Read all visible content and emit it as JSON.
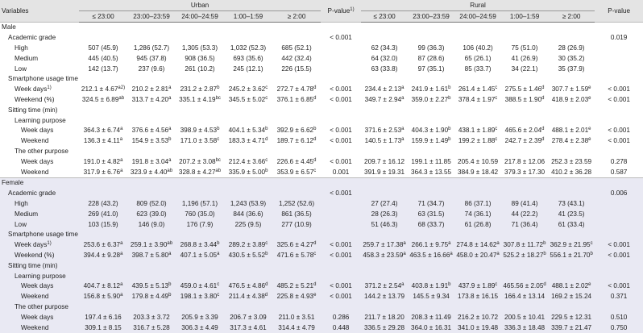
{
  "header": {
    "variables": "Variables",
    "urban": "Urban",
    "p_urban": [
      "P-value",
      "1)"
    ],
    "rural": "Rural",
    "p_rural": "P-value",
    "times": [
      "≤ 23:00",
      "23:00–23:59",
      "24:00–24:59",
      "1:00–1:59",
      "≥ 2:00"
    ]
  },
  "sections": [
    {
      "name": "Male",
      "rows": [
        {
          "label": "Academic grade",
          "p_urban": "< 0.001",
          "p_rural": "0.019"
        },
        {
          "label": "High",
          "urban": [
            "507 (45.9)",
            "1,286 (52.7)",
            "1,305 (53.3)",
            "1,032 (52.3)",
            "685 (52.1)"
          ],
          "rural": [
            "62 (34.3)",
            "99 (36.3)",
            "106 (40.2)",
            "75 (51.0)",
            "28 (26.9)"
          ]
        },
        {
          "label": "Medium",
          "urban": [
            "445 (40.5)",
            "945 (37.8)",
            "908 (36.5)",
            "693 (35.6)",
            "442 (32.4)"
          ],
          "rural": [
            "64 (32.0)",
            "87 (28.6)",
            "65 (26.1)",
            "41 (26.9)",
            "30 (35.2)"
          ]
        },
        {
          "label": "Low",
          "urban": [
            "142 (13.7)",
            "237 (9.6)",
            "261 (10.2)",
            "245 (12.1)",
            "226 (15.5)"
          ],
          "rural": [
            "63 (33.8)",
            "97 (35.1)",
            "85 (33.7)",
            "34 (22.1)",
            "35 (37.9)"
          ]
        },
        {
          "label": "Smartphone usage time (min)"
        },
        {
          "label": [
            "Week days",
            "1)"
          ],
          "urban": [
            [
              "212.1 ± 4.67",
              "a2)"
            ],
            [
              "210.2 ± 2.81",
              "a"
            ],
            [
              "231.2 ± 2.87",
              "b"
            ],
            [
              "245.2 ± 3.62",
              "c"
            ],
            [
              "272.7 ± 4.78",
              "d"
            ]
          ],
          "p_urban": "< 0.001",
          "rural": [
            [
              "234.4 ± 2.13",
              "a"
            ],
            [
              "241.9 ± 1.61",
              "b"
            ],
            [
              "261.4 ± 1.45",
              "c"
            ],
            [
              "275.5 ± 1.46",
              "d"
            ],
            [
              "307.7 ± 1.59",
              "e"
            ]
          ],
          "p_rural": "< 0.001"
        },
        {
          "label": "Weekend (%)",
          "urban": [
            [
              "324.5 ± 6.89",
              "ab"
            ],
            [
              "313.7 ± 4.20",
              "a"
            ],
            [
              "335.1 ± 4.19",
              "bc"
            ],
            [
              "345.5 ± 5.02",
              "c"
            ],
            [
              "376.1 ± 6.85",
              "d"
            ]
          ],
          "p_urban": "< 0.001",
          "rural": [
            [
              "349.7 ± 2.94",
              "a"
            ],
            [
              "359.0 ± 2.27",
              "b"
            ],
            [
              "378.4 ± 1.97",
              "c"
            ],
            [
              "388.5 ± 1.90",
              "d"
            ],
            [
              "418.9 ± 2.03",
              "e"
            ]
          ],
          "p_rural": "< 0.001"
        },
        {
          "label": "Sitting time (min)"
        },
        {
          "label": "Learning purpose"
        },
        {
          "label": "Week days",
          "urban": [
            [
              "364.3 ± 6.74",
              "a"
            ],
            [
              "376.6 ± 4.56",
              "a"
            ],
            [
              "398.9 ± 4.53",
              "b"
            ],
            [
              "404.1 ± 5.34",
              "b"
            ],
            [
              "392.9 ± 6.62",
              "b"
            ]
          ],
          "p_urban": "< 0.001",
          "rural": [
            [
              "371.6 ± 2.53",
              "a"
            ],
            [
              "404.3 ± 1.90",
              "b"
            ],
            [
              "438.1 ± 1.89",
              "c"
            ],
            [
              "465.6 ± 2.04",
              "d"
            ],
            [
              "488.1 ± 2.01",
              "e"
            ]
          ],
          "p_rural": "< 0.001"
        },
        {
          "label": "Weekend",
          "urban": [
            [
              "136.3 ± 4.11",
              "a"
            ],
            [
              "154.9 ± 3.53",
              "b"
            ],
            [
              "171.0 ± 3.58",
              "c"
            ],
            [
              "183.3 ± 4.71",
              "d"
            ],
            [
              "189.7 ± 6.12",
              "d"
            ]
          ],
          "p_urban": "< 0.001",
          "rural": [
            [
              "140.5 ± 1.73",
              "a"
            ],
            [
              "159.9 ± 1.49",
              "b"
            ],
            [
              "199.2 ± 1.88",
              "c"
            ],
            [
              "242.7 ± 2.39",
              "d"
            ],
            [
              "278.4 ± 2.38",
              "e"
            ]
          ],
          "p_rural": "< 0.001"
        },
        {
          "label": "The other purpose"
        },
        {
          "label": "Week days",
          "urban": [
            [
              "191.0 ± 4.82",
              "a"
            ],
            [
              "191.8 ± 3.04",
              "a"
            ],
            [
              "207.2 ± 3.08",
              "bc"
            ],
            [
              "212.4 ± 3.66",
              "c"
            ],
            [
              "226.6 ± 4.45",
              "d"
            ]
          ],
          "p_urban": "< 0.001",
          "rural": [
            "209.7 ± 16.12",
            "199.1 ± 11.85",
            "205.4 ± 10.59",
            "217.8 ± 12.06",
            "252.3 ± 23.59"
          ],
          "p_rural": "0.278"
        },
        {
          "label": "Weekend",
          "urban": [
            [
              "317.9 ± 6.76",
              "a"
            ],
            [
              "323.9 ± 4.40",
              "ab"
            ],
            [
              "328.8 ± 4.27",
              "ab"
            ],
            [
              "335.9 ± 5.00",
              "b"
            ],
            [
              "353.9 ± 6.57",
              "c"
            ]
          ],
          "p_urban": "0.001",
          "rural": [
            "391.9 ± 19.31",
            "364.3 ± 13.55",
            "384.9 ± 18.42",
            "379.3 ± 17.30",
            "410.2 ± 36.28"
          ],
          "p_rural": "0.587"
        }
      ]
    },
    {
      "name": "Female",
      "rows": [
        {
          "label": "Academic grade",
          "p_urban": "< 0.001",
          "p_rural": "0.006"
        },
        {
          "label": "High",
          "urban": [
            "228 (43.2)",
            "809 (52.0)",
            "1,196 (57.1)",
            "1,243 (53.9)",
            "1,252 (52.6)"
          ],
          "rural": [
            "27 (27.4)",
            "71 (34.7)",
            "86 (37.1)",
            "89 (41.4)",
            "73 (43.1)"
          ]
        },
        {
          "label": "Medium",
          "urban": [
            "269 (41.0)",
            "623 (39.0)",
            "760 (35.0)",
            "844 (36.6)",
            "861 (36.5)"
          ],
          "rural": [
            "28 (26.3)",
            "63 (31.5)",
            "74 (36.1)",
            "44 (22.2)",
            "41 (23.5)"
          ]
        },
        {
          "label": "Low",
          "urban": [
            "103 (15.9)",
            "146 (9.0)",
            "176 (7.9)",
            "225 (9.5)",
            "277 (10.9)"
          ],
          "rural": [
            "51 (46.3)",
            "68 (33.7)",
            "61 (26.8)",
            "71 (36.4)",
            "61 (33.4)"
          ]
        },
        {
          "label": "Smartphone usage time (min)"
        },
        {
          "label": [
            "Week days",
            "1)"
          ],
          "urban": [
            [
              "253.6 ± 6.37",
              "a"
            ],
            [
              "259.1 ± 3.90",
              "ab"
            ],
            [
              "268.8 ± 3.44",
              "b"
            ],
            [
              "289.2 ± 3.89",
              "c"
            ],
            [
              "325.6 ± 4.27",
              "d"
            ]
          ],
          "p_urban": "< 0.001",
          "rural": [
            [
              "259.7 ± 17.38",
              "a"
            ],
            [
              "266.1 ± 9.75",
              "a"
            ],
            [
              "274.8 ± 14.62",
              "a"
            ],
            [
              "307.8 ± 11.72",
              "b"
            ],
            [
              "362.9 ± 21.95",
              "c"
            ]
          ],
          "p_rural": "< 0.001"
        },
        {
          "label": "Weekend (%)",
          "urban": [
            [
              "394.4 ± 9.28",
              "a"
            ],
            [
              "398.7 ± 5.80",
              "a"
            ],
            [
              "407.1 ± 5.05",
              "a"
            ],
            [
              "430.5 ± 5.52",
              "b"
            ],
            [
              "471.6 ± 5.78",
              "c"
            ]
          ],
          "p_urban": "< 0.001",
          "rural": [
            [
              "458.3 ± 23.59",
              "a"
            ],
            [
              "463.5 ± 16.66",
              "a"
            ],
            [
              "458.0 ± 20.47",
              "a"
            ],
            [
              "525.2 ± 18.27",
              "b"
            ],
            [
              "556.1 ± 21.70",
              "b"
            ]
          ],
          "p_rural": "< 0.001"
        },
        {
          "label": "Sitting time (min)"
        },
        {
          "label": "Learning purpose"
        },
        {
          "label": "Week days",
          "urban": [
            [
              "404.7 ± 8.12",
              "a"
            ],
            [
              "439.5 ± 5.13",
              "b"
            ],
            [
              "459.0 ± 4.61",
              "c"
            ],
            [
              "476.5 ± 4.86",
              "d"
            ],
            [
              "485.2 ± 5.21",
              "d"
            ]
          ],
          "p_urban": "< 0.001",
          "rural": [
            [
              "371.2 ± 2.54",
              "a"
            ],
            [
              "403.8 ± 1.91",
              "b"
            ],
            [
              "437.9 ± 1.89",
              "c"
            ],
            [
              "465.56 ± 2.05",
              "d"
            ],
            [
              "488.1 ± 2.02",
              "e"
            ]
          ],
          "p_rural": "< 0.001"
        },
        {
          "label": "Weekend",
          "urban": [
            [
              "156.8 ± 5.90",
              "a"
            ],
            [
              "179.8 ± 4.49",
              "b"
            ],
            [
              "198.1 ± 3.80",
              "c"
            ],
            [
              "211.4 ± 4.38",
              "d"
            ],
            [
              "225.8 ± 4.93",
              "e"
            ]
          ],
          "p_urban": "< 0.001",
          "rural": [
            "144.2 ± 13.79",
            "145.5 ± 9.34",
            "173.8 ± 16.15",
            "166.4 ± 13.14",
            "169.2 ± 15.24"
          ],
          "p_rural": "0.371"
        },
        {
          "label": "The other purpose"
        },
        {
          "label": "Week days",
          "urban": [
            "197.4 ± 6.16",
            "203.3 ± 3.72",
            "205.9 ± 3.39",
            "206.7 ± 3.09",
            "211.0 ± 3.51"
          ],
          "p_urban": "0.286",
          "rural": [
            "211.7 ± 18.20",
            "208.3 ± 11.49",
            "216.2 ± 10.72",
            "200.5 ± 10.41",
            "229.5 ± 12.31"
          ],
          "p_rural": "0.510"
        },
        {
          "label": "Weekend",
          "urban": [
            "309.1 ± 8.15",
            "316.7 ± 5.28",
            "306.3 ± 4.49",
            "317.3 ± 4.61",
            "314.4 ± 4.79"
          ],
          "p_urban": "0.448",
          "rural": [
            "336.5 ± 29.28",
            "364.0 ± 16.31",
            "341.0 ± 19.48",
            "336.3 ± 18.48",
            "339.7 ± 21.47"
          ],
          "p_rural": "0.750"
        }
      ]
    }
  ]
}
